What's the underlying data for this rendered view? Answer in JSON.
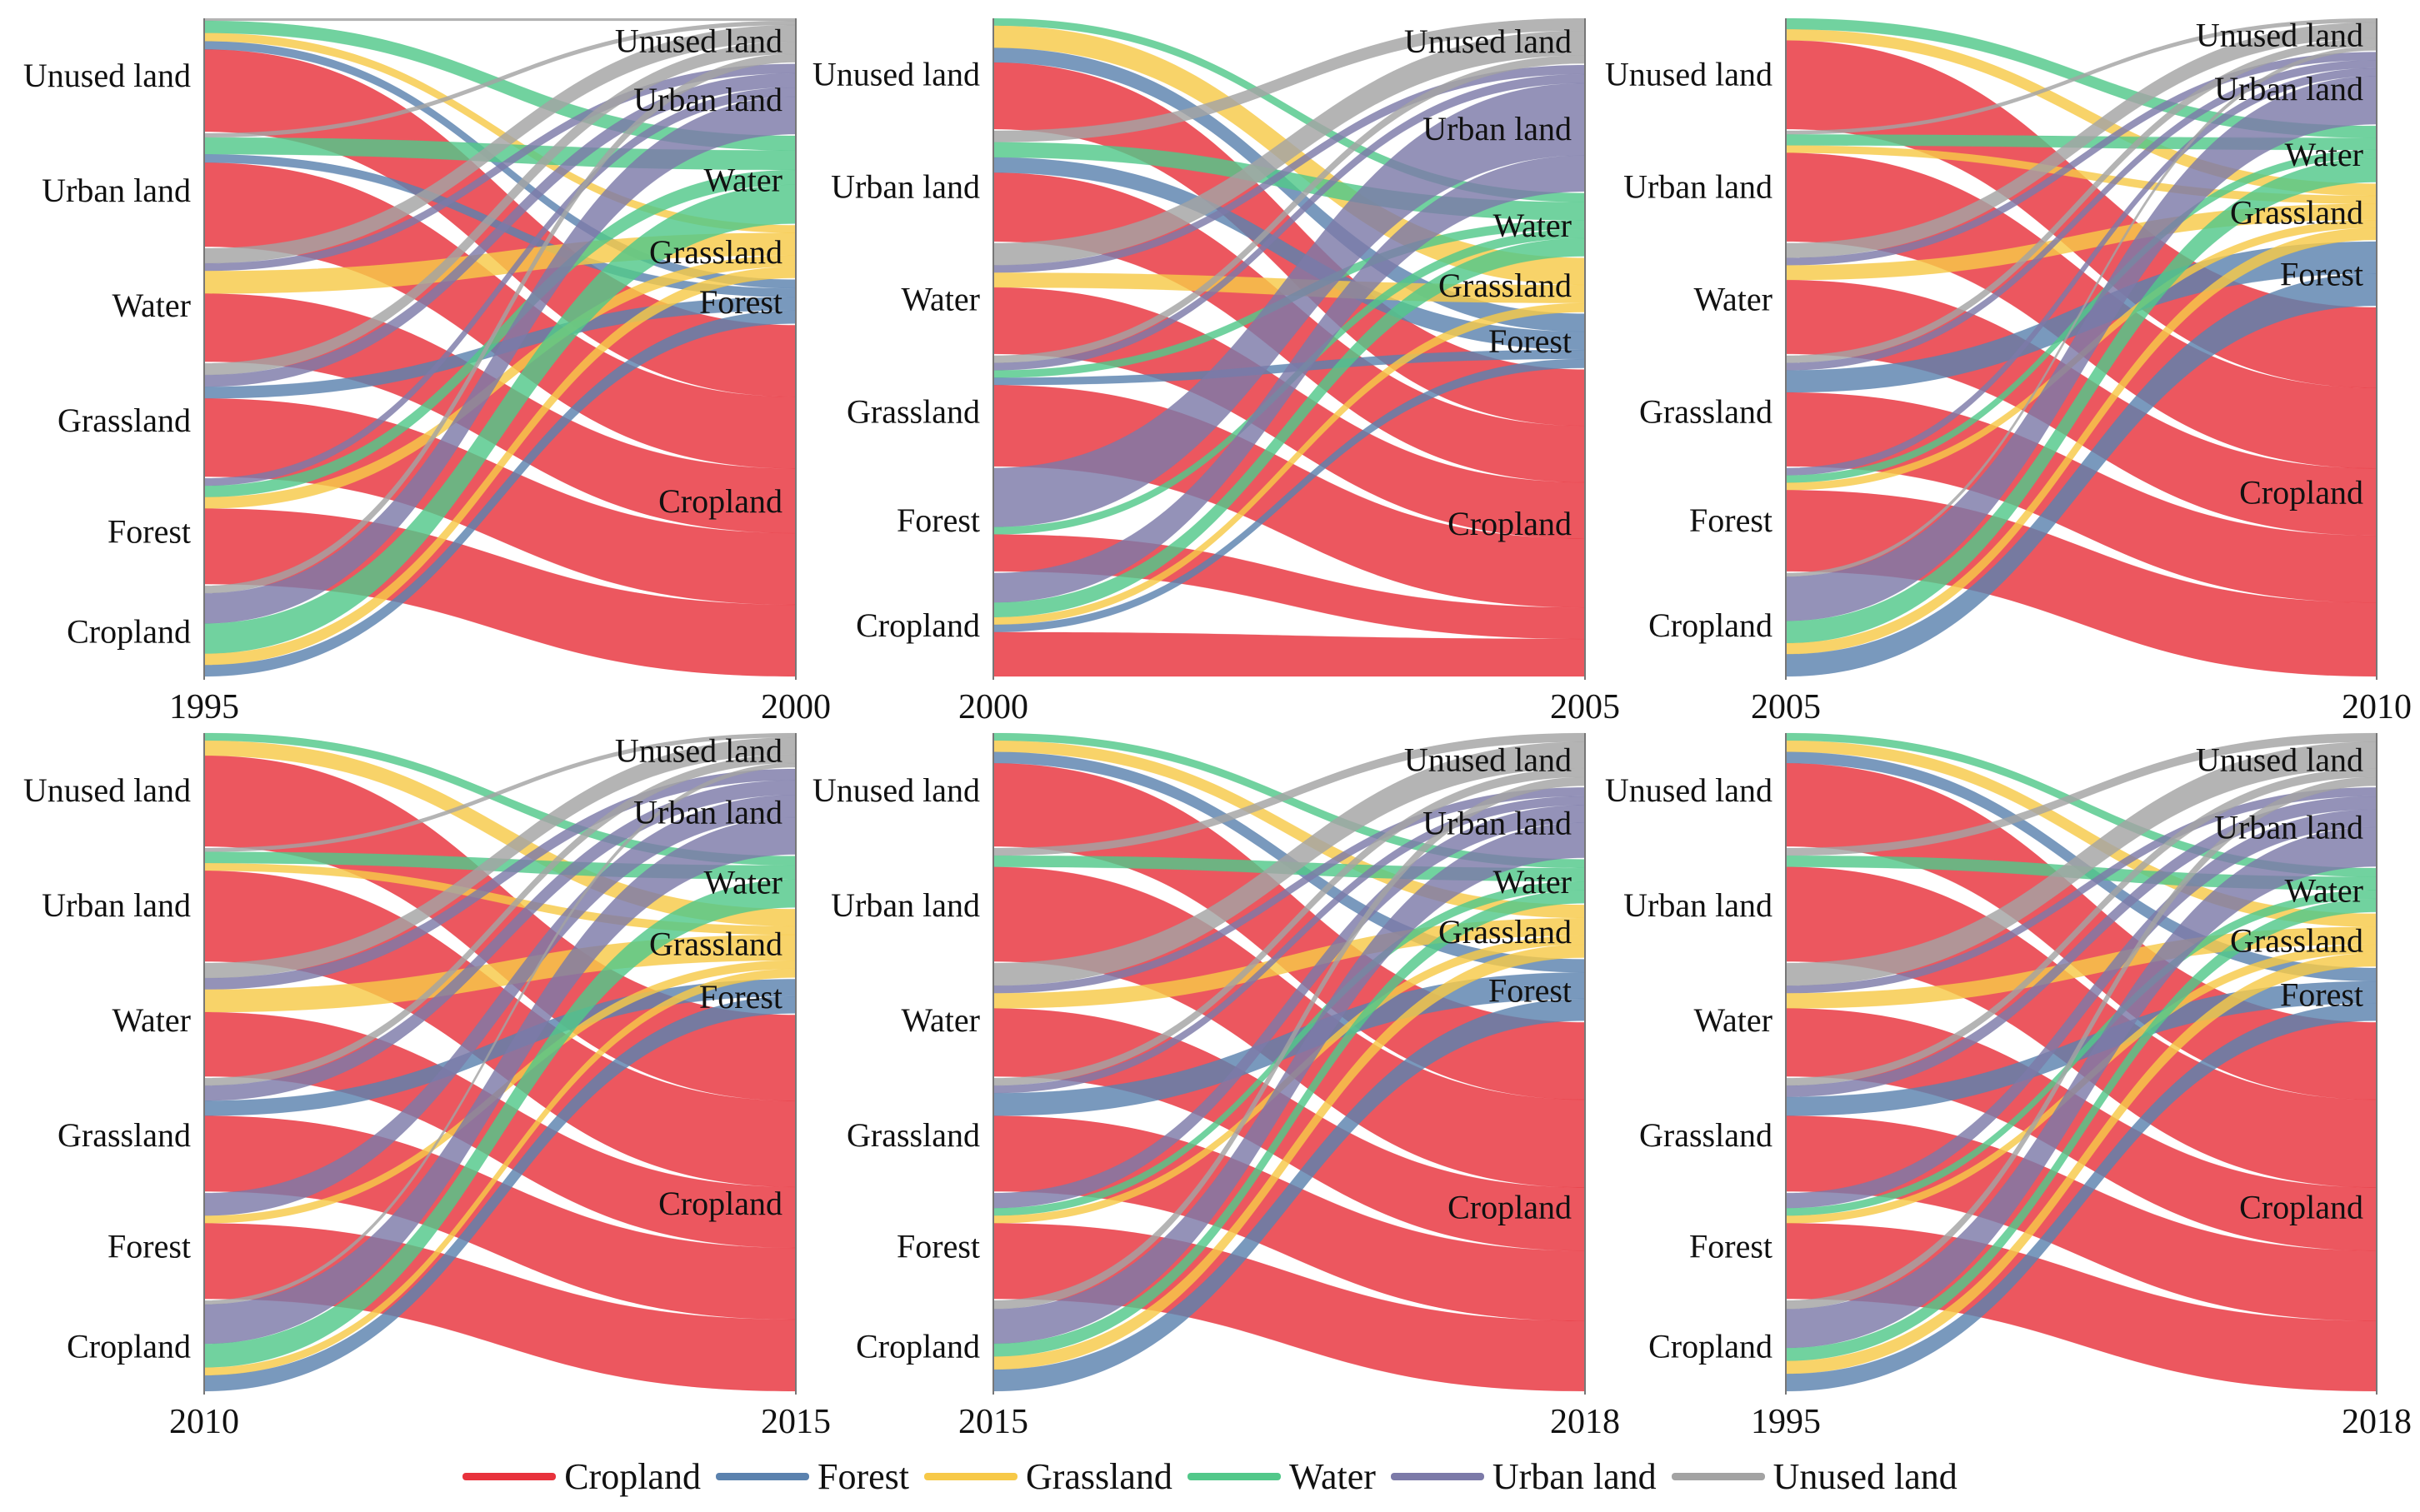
{
  "colors": {
    "Cropland": "#e8323c",
    "Forest": "#5b82ae",
    "Grassland": "#f7c948",
    "Water": "#52c88a",
    "Urban land": "#7c7aa8",
    "Unused land": "#a3a3a3"
  },
  "legend": {
    "items": [
      {
        "label": "Cropland",
        "color": "#e8323c"
      },
      {
        "label": "Forest",
        "color": "#5b82ae"
      },
      {
        "label": "Grassland",
        "color": "#f7c948"
      },
      {
        "label": "Water",
        "color": "#52c88a"
      },
      {
        "label": "Urban land",
        "color": "#7c7aa8"
      },
      {
        "label": "Unused land",
        "color": "#a3a3a3"
      }
    ]
  },
  "chart_data": [
    {
      "type": "sankey",
      "from_year": "1995",
      "to_year": "2000",
      "source_labels": [
        "Unused land",
        "Urban land",
        "Water",
        "Grassland",
        "Forest",
        "Cropland"
      ],
      "target_labels": [
        "Unused land",
        "Urban land",
        "Water",
        "Grassland",
        "Forest",
        "Cropland"
      ],
      "source_weights": [
        15,
        15,
        15,
        15,
        14,
        12
      ],
      "target_weights": [
        5,
        8,
        10,
        6,
        5,
        40
      ],
      "flows": [
        {
          "from": "Unused land",
          "to": "Unused land",
          "value": 0.3
        },
        {
          "from": "Unused land",
          "to": "Water",
          "value": 1.5
        },
        {
          "from": "Unused land",
          "to": "Grassland",
          "value": 1
        },
        {
          "from": "Unused land",
          "to": "Cropland",
          "value": 10
        },
        {
          "from": "Unused land",
          "to": "Forest",
          "value": 1
        },
        {
          "from": "Urban land",
          "to": "Unused land",
          "value": 0.5
        },
        {
          "from": "Urban land",
          "to": "Water",
          "value": 2
        },
        {
          "from": "Urban land",
          "to": "Forest",
          "value": 1
        },
        {
          "from": "Urban land",
          "to": "Cropland",
          "value": 10
        },
        {
          "from": "Water",
          "to": "Unused land",
          "value": 2
        },
        {
          "from": "Water",
          "to": "Urban land",
          "value": 1
        },
        {
          "from": "Water",
          "to": "Grassland",
          "value": 3
        },
        {
          "from": "Water",
          "to": "Cropland",
          "value": 9
        },
        {
          "from": "Grassland",
          "to": "Unused land",
          "value": 1.5
        },
        {
          "from": "Grassland",
          "to": "Urban land",
          "value": 1.5
        },
        {
          "from": "Grassland",
          "to": "Forest",
          "value": 1.5
        },
        {
          "from": "Grassland",
          "to": "Cropland",
          "value": 10
        },
        {
          "from": "Forest",
          "to": "Urban land",
          "value": 1
        },
        {
          "from": "Forest",
          "to": "Water",
          "value": 1.5
        },
        {
          "from": "Forest",
          "to": "Grassland",
          "value": 1.5
        },
        {
          "from": "Forest",
          "to": "Cropland",
          "value": 10
        },
        {
          "from": "Cropland",
          "to": "Unused land",
          "value": 1
        },
        {
          "from": "Cropland",
          "to": "Urban land",
          "value": 4
        },
        {
          "from": "Cropland",
          "to": "Water",
          "value": 4
        },
        {
          "from": "Cropland",
          "to": "Grassland",
          "value": 1.5
        },
        {
          "from": "Cropland",
          "to": "Forest",
          "value": 1.5
        }
      ]
    },
    {
      "type": "sankey",
      "from_year": "2000",
      "to_year": "2005",
      "source_labels": [
        "Unused land",
        "Urban land",
        "Water",
        "Grassland",
        "Forest",
        "Cropland"
      ],
      "target_labels": [
        "Unused land",
        "Urban land",
        "Water",
        "Grassland",
        "Forest",
        "Cropland"
      ],
      "source_weights": [
        15,
        15,
        15,
        15,
        14,
        14
      ],
      "target_weights": [
        5,
        14,
        7,
        6,
        6,
        34
      ],
      "flows": [
        {
          "from": "Unused land",
          "to": "Water",
          "value": 1
        },
        {
          "from": "Unused land",
          "to": "Grassland",
          "value": 3
        },
        {
          "from": "Unused land",
          "to": "Forest",
          "value": 2
        },
        {
          "from": "Unused land",
          "to": "Cropland",
          "value": 9
        },
        {
          "from": "Urban land",
          "to": "Unused land",
          "value": 1.5
        },
        {
          "from": "Urban land",
          "to": "Water",
          "value": 2
        },
        {
          "from": "Urban land",
          "to": "Forest",
          "value": 2
        },
        {
          "from": "Urban land",
          "to": "Cropland",
          "value": 9
        },
        {
          "from": "Water",
          "to": "Unused land",
          "value": 3
        },
        {
          "from": "Water",
          "to": "Urban land",
          "value": 1
        },
        {
          "from": "Water",
          "to": "Grassland",
          "value": 2
        },
        {
          "from": "Water",
          "to": "Cropland",
          "value": 9
        },
        {
          "from": "Grassland",
          "to": "Unused land",
          "value": 1
        },
        {
          "from": "Grassland",
          "to": "Urban land",
          "value": 1
        },
        {
          "from": "Grassland",
          "to": "Water",
          "value": 1
        },
        {
          "from": "Grassland",
          "to": "Forest",
          "value": 1
        },
        {
          "from": "Grassland",
          "to": "Cropland",
          "value": 11
        },
        {
          "from": "Forest",
          "to": "Urban land",
          "value": 8
        },
        {
          "from": "Forest",
          "to": "Water",
          "value": 1
        },
        {
          "from": "Forest",
          "to": "Cropland",
          "value": 5
        },
        {
          "from": "Cropland",
          "to": "Urban land",
          "value": 4
        },
        {
          "from": "Cropland",
          "to": "Water",
          "value": 2
        },
        {
          "from": "Cropland",
          "to": "Grassland",
          "value": 1
        },
        {
          "from": "Cropland",
          "to": "Forest",
          "value": 1
        },
        {
          "from": "Cropland",
          "to": "Cropland",
          "value": 6
        }
      ]
    },
    {
      "type": "sankey",
      "from_year": "2005",
      "to_year": "2010",
      "source_labels": [
        "Unused land",
        "Urban land",
        "Water",
        "Grassland",
        "Forest",
        "Cropland"
      ],
      "target_labels": [
        "Unused land",
        "Urban land",
        "Water",
        "Grassland",
        "Forest",
        "Cropland"
      ],
      "source_weights": [
        15,
        15,
        15,
        15,
        14,
        14
      ],
      "target_weights": [
        4,
        9,
        7,
        7,
        8,
        46
      ],
      "flows": [
        {
          "from": "Unused land",
          "to": "Water",
          "value": 1.5
        },
        {
          "from": "Unused land",
          "to": "Grassland",
          "value": 1.5
        },
        {
          "from": "Unused land",
          "to": "Cropland",
          "value": 12
        },
        {
          "from": "Urban land",
          "to": "Unused land",
          "value": 0.5
        },
        {
          "from": "Urban land",
          "to": "Water",
          "value": 1.5
        },
        {
          "from": "Urban land",
          "to": "Grassland",
          "value": 1
        },
        {
          "from": "Urban land",
          "to": "Cropland",
          "value": 12
        },
        {
          "from": "Water",
          "to": "Unused land",
          "value": 2
        },
        {
          "from": "Water",
          "to": "Urban land",
          "value": 1
        },
        {
          "from": "Water",
          "to": "Grassland",
          "value": 2
        },
        {
          "from": "Water",
          "to": "Cropland",
          "value": 10
        },
        {
          "from": "Grassland",
          "to": "Unused land",
          "value": 1
        },
        {
          "from": "Grassland",
          "to": "Urban land",
          "value": 1
        },
        {
          "from": "Grassland",
          "to": "Forest",
          "value": 3
        },
        {
          "from": "Grassland",
          "to": "Cropland",
          "value": 10
        },
        {
          "from": "Forest",
          "to": "Urban land",
          "value": 1
        },
        {
          "from": "Forest",
          "to": "Water",
          "value": 1
        },
        {
          "from": "Forest",
          "to": "Grassland",
          "value": 1
        },
        {
          "from": "Forest",
          "to": "Cropland",
          "value": 11
        },
        {
          "from": "Cropland",
          "to": "Unused land",
          "value": 0.5
        },
        {
          "from": "Cropland",
          "to": "Urban land",
          "value": 6
        },
        {
          "from": "Cropland",
          "to": "Water",
          "value": 3
        },
        {
          "from": "Cropland",
          "to": "Grassland",
          "value": 1.5
        },
        {
          "from": "Cropland",
          "to": "Forest",
          "value": 3
        }
      ]
    },
    {
      "type": "sankey",
      "from_year": "2010",
      "to_year": "2015",
      "source_labels": [
        "Unused land",
        "Urban land",
        "Water",
        "Grassland",
        "Forest",
        "Cropland"
      ],
      "target_labels": [
        "Unused land",
        "Urban land",
        "Water",
        "Grassland",
        "Forest",
        "Cropland"
      ],
      "source_weights": [
        15,
        15,
        15,
        15,
        14,
        12
      ],
      "target_weights": [
        4,
        10,
        6,
        8,
        4,
        44
      ],
      "flows": [
        {
          "from": "Unused land",
          "to": "Water",
          "value": 1
        },
        {
          "from": "Unused land",
          "to": "Grassland",
          "value": 2
        },
        {
          "from": "Unused land",
          "to": "Cropland",
          "value": 12
        },
        {
          "from": "Urban land",
          "to": "Unused land",
          "value": 0.5
        },
        {
          "from": "Urban land",
          "to": "Water",
          "value": 1.5
        },
        {
          "from": "Urban land",
          "to": "Grassland",
          "value": 1
        },
        {
          "from": "Urban land",
          "to": "Cropland",
          "value": 12
        },
        {
          "from": "Water",
          "to": "Unused land",
          "value": 2
        },
        {
          "from": "Water",
          "to": "Urban land",
          "value": 1.5
        },
        {
          "from": "Water",
          "to": "Grassland",
          "value": 3
        },
        {
          "from": "Water",
          "to": "Cropland",
          "value": 8.5
        },
        {
          "from": "Grassland",
          "to": "Unused land",
          "value": 1
        },
        {
          "from": "Grassland",
          "to": "Urban land",
          "value": 2
        },
        {
          "from": "Grassland",
          "to": "Forest",
          "value": 2
        },
        {
          "from": "Grassland",
          "to": "Cropland",
          "value": 10
        },
        {
          "from": "Forest",
          "to": "Urban land",
          "value": 3
        },
        {
          "from": "Forest",
          "to": "Grassland",
          "value": 1
        },
        {
          "from": "Forest",
          "to": "Cropland",
          "value": 10
        },
        {
          "from": "Cropland",
          "to": "Unused land",
          "value": 0.5
        },
        {
          "from": "Cropland",
          "to": "Urban land",
          "value": 5
        },
        {
          "from": "Cropland",
          "to": "Water",
          "value": 3
        },
        {
          "from": "Cropland",
          "to": "Grassland",
          "value": 1
        },
        {
          "from": "Cropland",
          "to": "Forest",
          "value": 2
        }
      ]
    },
    {
      "type": "sankey",
      "from_year": "2015",
      "to_year": "2018",
      "source_labels": [
        "Unused land",
        "Urban land",
        "Water",
        "Grassland",
        "Forest",
        "Cropland"
      ],
      "target_labels": [
        "Unused land",
        "Urban land",
        "Water",
        "Grassland",
        "Forest",
        "Cropland"
      ],
      "source_weights": [
        15,
        15,
        15,
        15,
        14,
        12
      ],
      "target_weights": [
        6,
        8,
        5,
        6,
        7,
        42
      ],
      "flows": [
        {
          "from": "Unused land",
          "to": "Water",
          "value": 1
        },
        {
          "from": "Unused land",
          "to": "Grassland",
          "value": 1.5
        },
        {
          "from": "Unused land",
          "to": "Forest",
          "value": 1.5
        },
        {
          "from": "Unused land",
          "to": "Cropland",
          "value": 11
        },
        {
          "from": "Urban land",
          "to": "Unused land",
          "value": 1
        },
        {
          "from": "Urban land",
          "to": "Water",
          "value": 1.5
        },
        {
          "from": "Urban land",
          "to": "Cropland",
          "value": 12.5
        },
        {
          "from": "Water",
          "to": "Unused land",
          "value": 3
        },
        {
          "from": "Water",
          "to": "Urban land",
          "value": 1
        },
        {
          "from": "Water",
          "to": "Grassland",
          "value": 2
        },
        {
          "from": "Water",
          "to": "Cropland",
          "value": 9
        },
        {
          "from": "Grassland",
          "to": "Unused land",
          "value": 1
        },
        {
          "from": "Grassland",
          "to": "Urban land",
          "value": 1
        },
        {
          "from": "Grassland",
          "to": "Forest",
          "value": 3
        },
        {
          "from": "Grassland",
          "to": "Cropland",
          "value": 10
        },
        {
          "from": "Forest",
          "to": "Urban land",
          "value": 2
        },
        {
          "from": "Forest",
          "to": "Water",
          "value": 1
        },
        {
          "from": "Forest",
          "to": "Grassland",
          "value": 1
        },
        {
          "from": "Forest",
          "to": "Cropland",
          "value": 10
        },
        {
          "from": "Cropland",
          "to": "Unused land",
          "value": 1
        },
        {
          "from": "Cropland",
          "to": "Urban land",
          "value": 4
        },
        {
          "from": "Cropland",
          "to": "Water",
          "value": 1.5
        },
        {
          "from": "Cropland",
          "to": "Grassland",
          "value": 1.5
        },
        {
          "from": "Cropland",
          "to": "Forest",
          "value": 2.5
        }
      ]
    },
    {
      "type": "sankey",
      "from_year": "1995",
      "to_year": "2018",
      "source_labels": [
        "Unused land",
        "Urban land",
        "Water",
        "Grassland",
        "Forest",
        "Cropland"
      ],
      "target_labels": [
        "Unused land",
        "Urban land",
        "Water",
        "Grassland",
        "Forest",
        "Cropland"
      ],
      "source_weights": [
        15,
        15,
        15,
        15,
        14,
        12
      ],
      "target_weights": [
        6,
        9,
        5,
        6,
        6,
        42
      ],
      "flows": [
        {
          "from": "Unused land",
          "to": "Water",
          "value": 1
        },
        {
          "from": "Unused land",
          "to": "Grassland",
          "value": 1.5
        },
        {
          "from": "Unused land",
          "to": "Forest",
          "value": 1.5
        },
        {
          "from": "Unused land",
          "to": "Cropland",
          "value": 11
        },
        {
          "from": "Urban land",
          "to": "Unused land",
          "value": 1
        },
        {
          "from": "Urban land",
          "to": "Water",
          "value": 1.5
        },
        {
          "from": "Urban land",
          "to": "Cropland",
          "value": 12.5
        },
        {
          "from": "Water",
          "to": "Unused land",
          "value": 3
        },
        {
          "from": "Water",
          "to": "Urban land",
          "value": 1
        },
        {
          "from": "Water",
          "to": "Grassland",
          "value": 2
        },
        {
          "from": "Water",
          "to": "Cropland",
          "value": 9
        },
        {
          "from": "Grassland",
          "to": "Unused land",
          "value": 1
        },
        {
          "from": "Grassland",
          "to": "Urban land",
          "value": 1.5
        },
        {
          "from": "Grassland",
          "to": "Forest",
          "value": 2.5
        },
        {
          "from": "Grassland",
          "to": "Cropland",
          "value": 10
        },
        {
          "from": "Forest",
          "to": "Urban land",
          "value": 2
        },
        {
          "from": "Forest",
          "to": "Water",
          "value": 1
        },
        {
          "from": "Forest",
          "to": "Grassland",
          "value": 1
        },
        {
          "from": "Forest",
          "to": "Cropland",
          "value": 10
        },
        {
          "from": "Cropland",
          "to": "Unused land",
          "value": 1
        },
        {
          "from": "Cropland",
          "to": "Urban land",
          "value": 4.5
        },
        {
          "from": "Cropland",
          "to": "Water",
          "value": 1.5
        },
        {
          "from": "Cropland",
          "to": "Grassland",
          "value": 1.5
        },
        {
          "from": "Cropland",
          "to": "Forest",
          "value": 2
        }
      ]
    }
  ]
}
